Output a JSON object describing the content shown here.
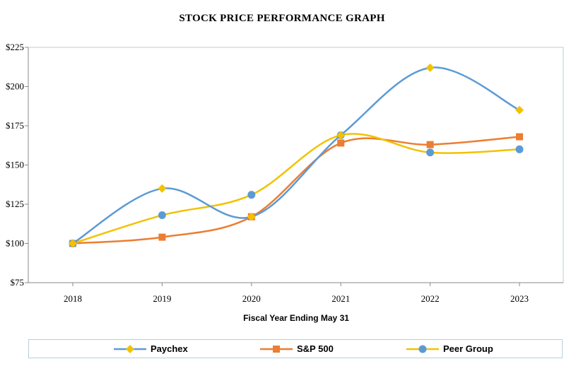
{
  "chart_data": {
    "type": "line",
    "title": "STOCK PRICE PERFORMANCE GRAPH",
    "xlabel": "Fiscal Year Ending May 31",
    "ylabel": "",
    "categories": [
      "2018",
      "2019",
      "2020",
      "2021",
      "2022",
      "2023"
    ],
    "ylim": [
      75,
      225
    ],
    "yticks": [
      75,
      100,
      125,
      150,
      175,
      200,
      225
    ],
    "ytick_labels": [
      "$75",
      "$100",
      "$125",
      "$150",
      "$175",
      "$200",
      "$225"
    ],
    "series": [
      {
        "name": "Paychex",
        "marker": "diamond",
        "line_color": "#5b9bd5",
        "marker_color": "#f2c200",
        "values": [
          100,
          135,
          117,
          169,
          212,
          185
        ]
      },
      {
        "name": "S&P 500",
        "marker": "square",
        "line_color": "#ed7d31",
        "marker_color": "#ed7d31",
        "values": [
          100,
          104,
          117,
          164,
          163,
          168
        ]
      },
      {
        "name": "Peer Group",
        "marker": "circle",
        "line_color": "#f2c200",
        "marker_color": "#5b9bd5",
        "values": [
          100,
          118,
          131,
          169,
          158,
          160
        ]
      }
    ],
    "legend_position": "bottom"
  }
}
